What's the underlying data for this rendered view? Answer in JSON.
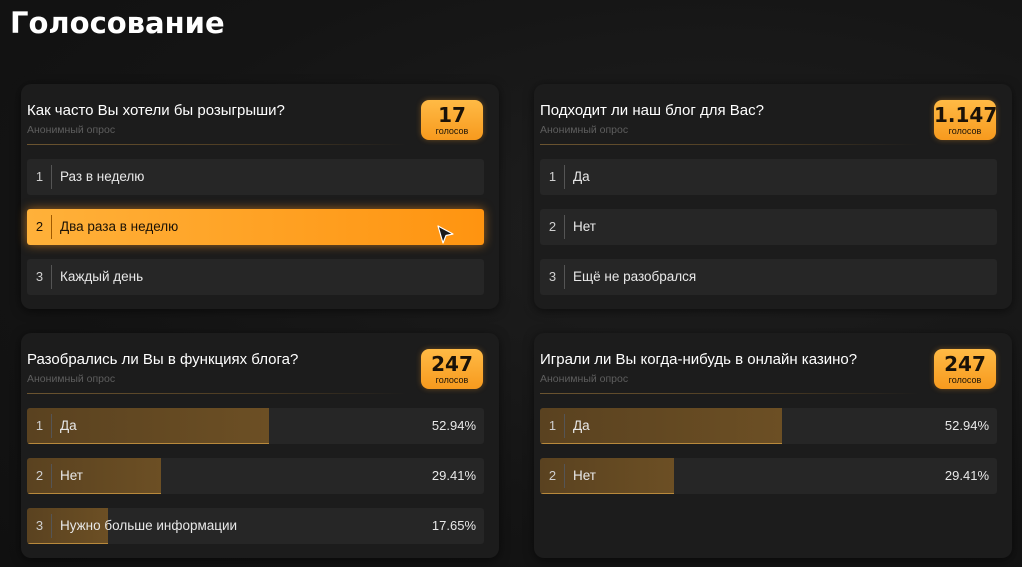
{
  "page": {
    "title": "Голосование"
  },
  "polls": [
    {
      "question": "Как часто Вы хотели бы розыгрыши?",
      "subtitle": "Анонимный опрос",
      "votes": "17",
      "votes_label": "голосов",
      "options": [
        {
          "index": "1",
          "label": "Раз в неделю"
        },
        {
          "index": "2",
          "label": "Два раза в неделю",
          "selected": true
        },
        {
          "index": "3",
          "label": "Каждый день"
        }
      ]
    },
    {
      "question": "Подходит ли наш блог для Вас?",
      "subtitle": "Анонимный опрос",
      "votes": "1.147",
      "votes_label": "голосов",
      "options": [
        {
          "index": "1",
          "label": "Да"
        },
        {
          "index": "2",
          "label": "Нет"
        },
        {
          "index": "3",
          "label": "Ещё не разобрался"
        }
      ]
    },
    {
      "question": "Разобрались ли Вы в функциях блога?",
      "subtitle": "Анонимный опрос",
      "votes": "247",
      "votes_label": "голосов",
      "options": [
        {
          "index": "1",
          "label": "Да",
          "percent": "52.94%",
          "share": 0.5294
        },
        {
          "index": "2",
          "label": "Нет",
          "percent": "29.41%",
          "share": 0.2941
        },
        {
          "index": "3",
          "label": "Нужно больше информации",
          "percent": "17.65%",
          "share": 0.1765
        }
      ]
    },
    {
      "question": "Играли ли Вы когда-нибудь в онлайн казино?",
      "subtitle": "Анонимный опрос",
      "votes": "247",
      "votes_label": "голосов",
      "options": [
        {
          "index": "1",
          "label": "Да",
          "percent": "52.94%",
          "share": 0.5294
        },
        {
          "index": "2",
          "label": "Нет",
          "percent": "29.41%",
          "share": 0.2941
        }
      ]
    }
  ],
  "colors": {
    "accent": "#ff9f1f",
    "background": "#141414",
    "card": "#1c1c1c"
  }
}
